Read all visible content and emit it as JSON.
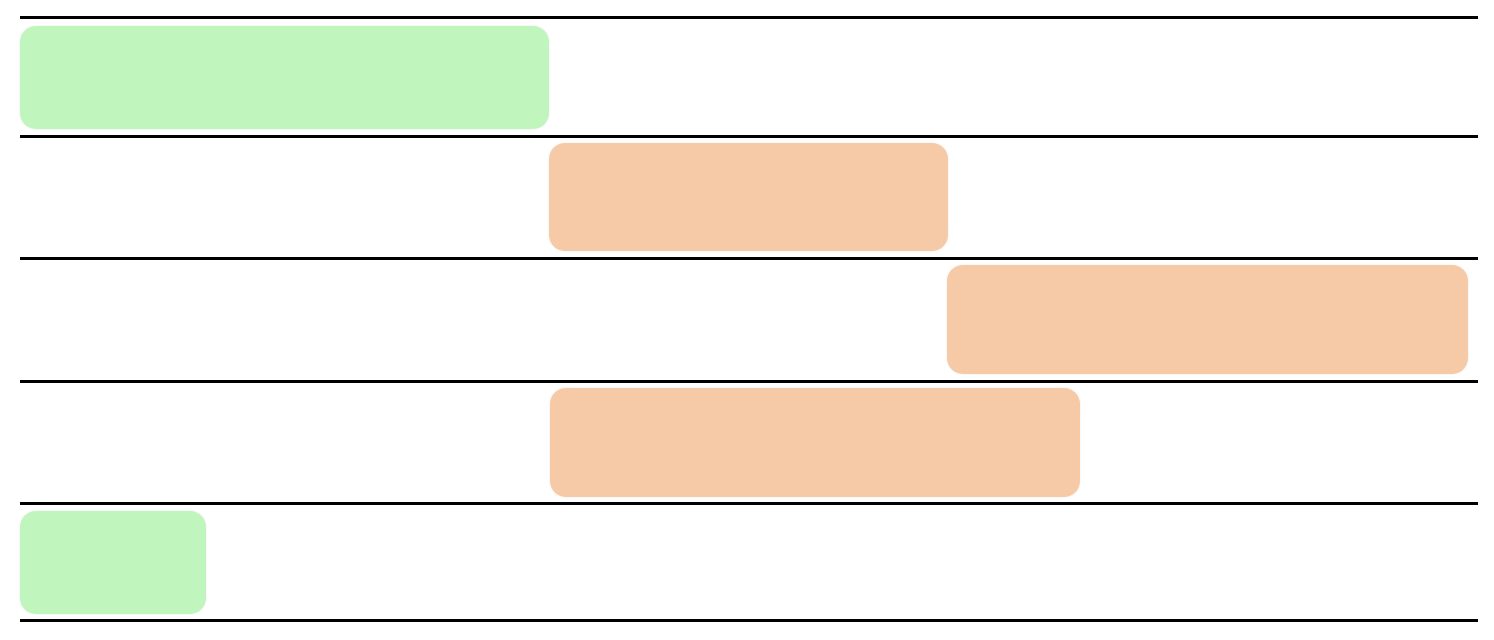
{
  "colors": {
    "green": "#c0f5be",
    "orange": "#f6caa6",
    "divider": "#000000"
  },
  "lanes": [
    {
      "bar_color": "green"
    },
    {
      "bar_color": "orange"
    },
    {
      "bar_color": "orange"
    },
    {
      "bar_color": "orange"
    },
    {
      "bar_color": "green"
    }
  ]
}
